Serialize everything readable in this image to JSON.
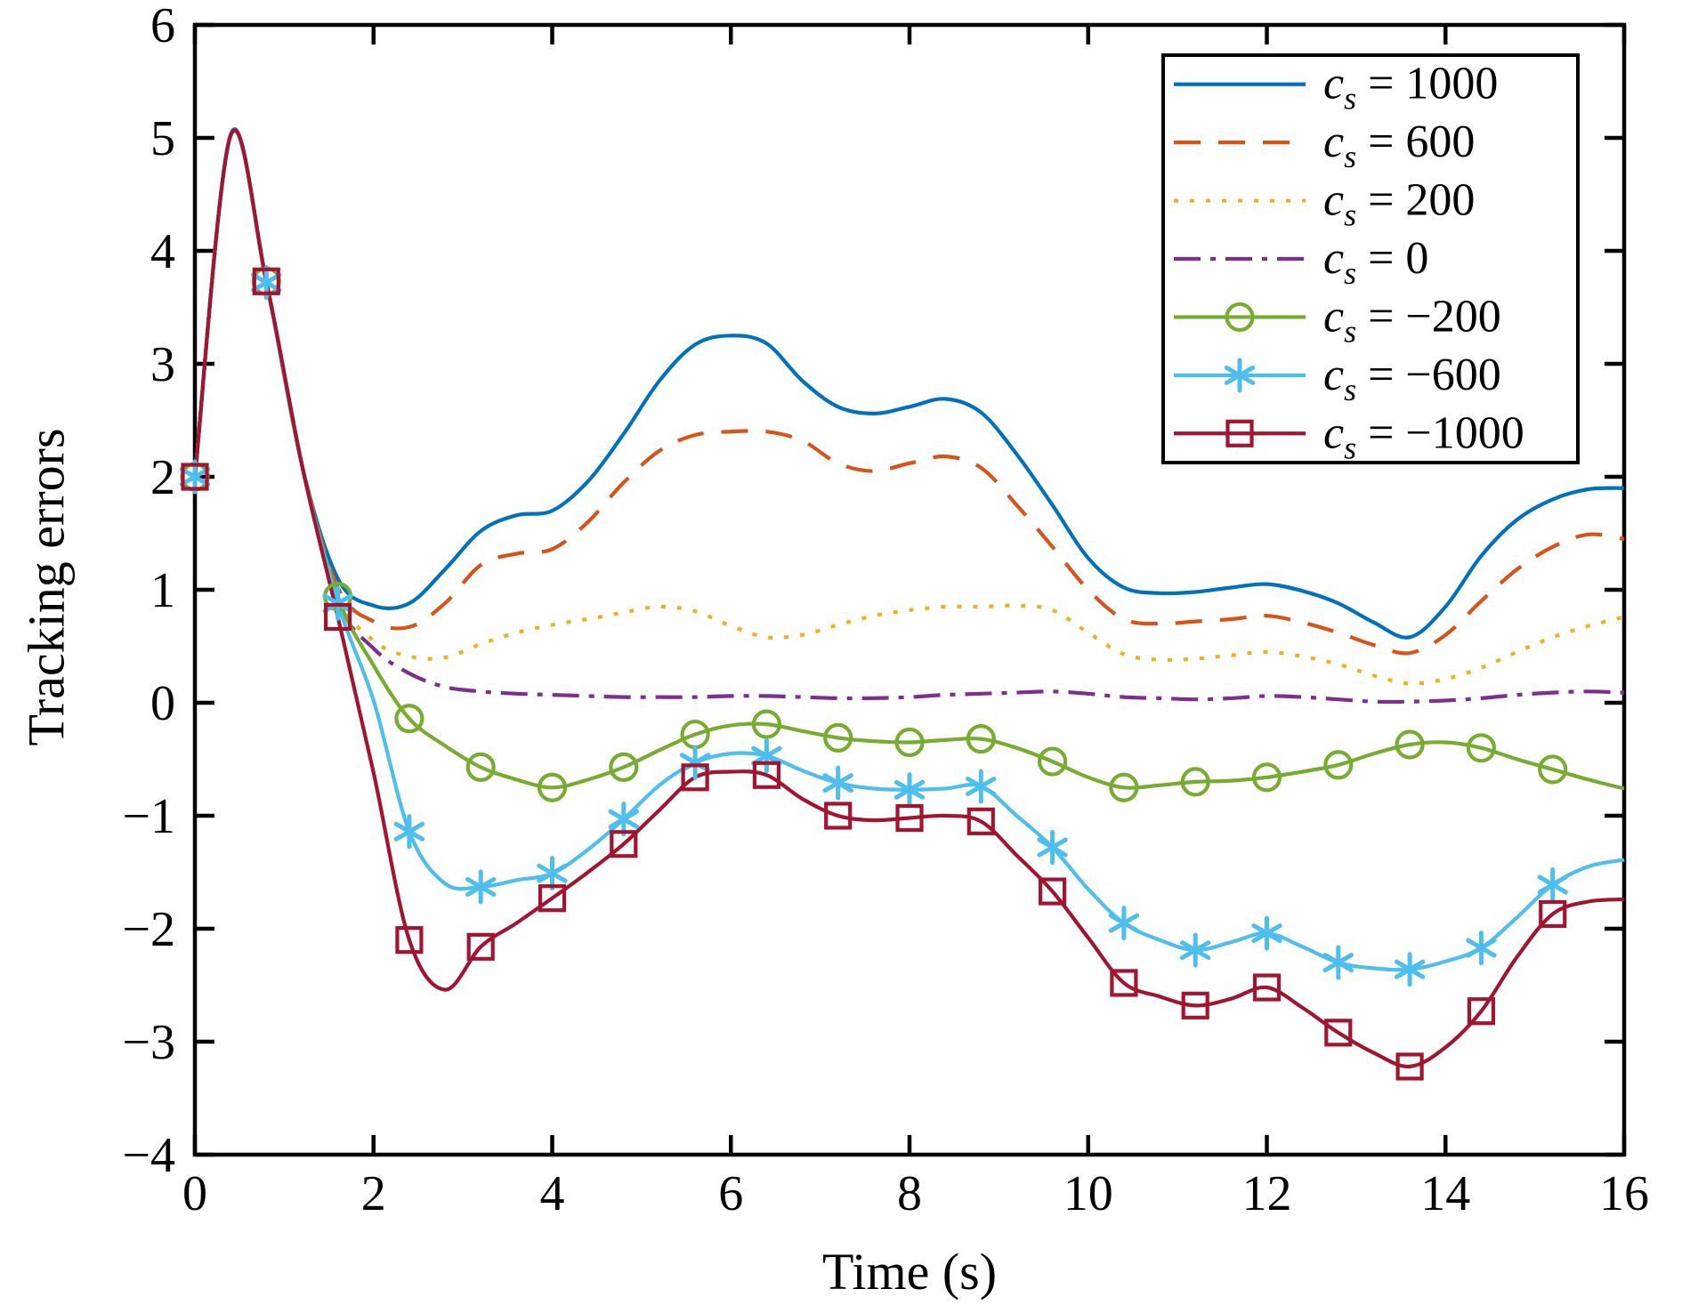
{
  "chart_data": {
    "type": "line",
    "title": "",
    "xlabel": "Time (s)",
    "ylabel": "Tracking errors",
    "xlim": [
      0,
      16
    ],
    "ylim": [
      -4,
      6
    ],
    "grid": false,
    "legend_position": "top-right",
    "x_tick_labels": [
      "0",
      "2",
      "4",
      "6",
      "8",
      "10",
      "12",
      "14",
      "16"
    ],
    "x_tick_values": [
      0,
      2,
      4,
      6,
      8,
      10,
      12,
      14,
      16
    ],
    "y_tick_labels": [
      "6",
      "5",
      "4",
      "3",
      "2",
      "1",
      "0",
      "−1",
      "−2",
      "−3",
      "−4"
    ],
    "y_tick_values": [
      6,
      5,
      4,
      3,
      2,
      1,
      0,
      -1,
      -2,
      -3,
      -4
    ],
    "t": [
      0,
      0.4,
      0.8,
      1.2,
      1.6,
      2,
      2.4,
      2.8,
      3.2,
      3.6,
      4,
      4.4,
      4.8,
      5.2,
      5.6,
      6,
      6.4,
      6.8,
      7.2,
      7.6,
      8,
      8.4,
      8.8,
      9.2,
      9.6,
      10,
      10.4,
      10.8,
      11.2,
      11.6,
      12,
      12.4,
      12.8,
      13.2,
      13.6,
      14,
      14.4,
      14.8,
      15.2,
      15.6,
      16
    ],
    "series": [
      {
        "id": "cs-1000",
        "legend_var": "c",
        "legend_sub": "s",
        "legend_value": "1000",
        "color": "#0072BD",
        "line_style": "solid",
        "marker": "none",
        "values": [
          2.0,
          5.03,
          3.72,
          2.1,
          1.1,
          0.86,
          0.88,
          1.18,
          1.52,
          1.66,
          1.7,
          1.96,
          2.38,
          2.85,
          3.17,
          3.25,
          3.18,
          2.85,
          2.62,
          2.56,
          2.62,
          2.69,
          2.57,
          2.2,
          1.75,
          1.28,
          1.02,
          0.97,
          0.98,
          1.02,
          1.05,
          0.99,
          0.88,
          0.71,
          0.58,
          0.85,
          1.3,
          1.62,
          1.8,
          1.89,
          1.9
        ]
      },
      {
        "id": "cs-600",
        "legend_var": "c",
        "legend_sub": "s",
        "legend_value": "600",
        "color": "#D95319",
        "line_style": "dashed",
        "marker": "none",
        "values": [
          2.0,
          5.02,
          3.72,
          2.1,
          1.02,
          0.72,
          0.67,
          0.88,
          1.22,
          1.32,
          1.36,
          1.6,
          1.95,
          2.23,
          2.37,
          2.4,
          2.4,
          2.32,
          2.12,
          2.05,
          2.12,
          2.18,
          2.08,
          1.75,
          1.38,
          1.0,
          0.74,
          0.7,
          0.72,
          0.74,
          0.77,
          0.71,
          0.62,
          0.51,
          0.44,
          0.6,
          0.9,
          1.18,
          1.38,
          1.49,
          1.45
        ]
      },
      {
        "id": "cs-200",
        "legend_var": "c",
        "legend_sub": "s",
        "legend_value": "200",
        "color": "#EDB120",
        "line_style": "dotted",
        "marker": "none",
        "values": [
          2.0,
          5.02,
          3.72,
          2.1,
          0.95,
          0.55,
          0.41,
          0.4,
          0.52,
          0.62,
          0.69,
          0.74,
          0.8,
          0.85,
          0.81,
          0.68,
          0.58,
          0.6,
          0.69,
          0.77,
          0.82,
          0.85,
          0.85,
          0.86,
          0.82,
          0.62,
          0.43,
          0.38,
          0.39,
          0.42,
          0.45,
          0.41,
          0.34,
          0.24,
          0.17,
          0.21,
          0.31,
          0.45,
          0.58,
          0.68,
          0.76
        ]
      },
      {
        "id": "cs-0",
        "legend_var": "c",
        "legend_sub": "s",
        "legend_value": "0",
        "color": "#7E2F8E",
        "line_style": "dashdot",
        "marker": "none",
        "values": [
          2.0,
          5.02,
          3.72,
          2.1,
          0.9,
          0.48,
          0.26,
          0.14,
          0.1,
          0.08,
          0.07,
          0.06,
          0.05,
          0.05,
          0.05,
          0.06,
          0.06,
          0.05,
          0.04,
          0.04,
          0.05,
          0.07,
          0.08,
          0.09,
          0.1,
          0.08,
          0.05,
          0.04,
          0.03,
          0.04,
          0.06,
          0.05,
          0.03,
          0.01,
          0.01,
          0.02,
          0.04,
          0.07,
          0.09,
          0.1,
          0.09
        ]
      },
      {
        "id": "cs-neg200",
        "legend_var": "c",
        "legend_sub": "s",
        "legend_value": "−200",
        "color": "#77AC30",
        "line_style": "solid",
        "marker": "circle",
        "values": [
          2.0,
          5.02,
          3.73,
          2.1,
          0.94,
          0.33,
          -0.14,
          -0.38,
          -0.57,
          -0.68,
          -0.75,
          -0.68,
          -0.57,
          -0.42,
          -0.28,
          -0.2,
          -0.19,
          -0.25,
          -0.31,
          -0.34,
          -0.35,
          -0.33,
          -0.32,
          -0.4,
          -0.52,
          -0.66,
          -0.75,
          -0.73,
          -0.7,
          -0.69,
          -0.66,
          -0.61,
          -0.55,
          -0.45,
          -0.37,
          -0.35,
          -0.4,
          -0.5,
          -0.59,
          -0.68,
          -0.76
        ]
      },
      {
        "id": "cs-neg600",
        "legend_var": "c",
        "legend_sub": "s",
        "legend_value": "−600",
        "color": "#4DBEEE",
        "line_style": "solid",
        "marker": "asterisk",
        "values": [
          2.0,
          5.02,
          3.72,
          2.1,
          0.88,
          0.02,
          -1.14,
          -1.6,
          -1.63,
          -1.57,
          -1.51,
          -1.3,
          -1.03,
          -0.73,
          -0.53,
          -0.45,
          -0.47,
          -0.6,
          -0.71,
          -0.76,
          -0.77,
          -0.76,
          -0.74,
          -1.0,
          -1.28,
          -1.65,
          -1.95,
          -2.1,
          -2.19,
          -2.12,
          -2.04,
          -2.16,
          -2.3,
          -2.35,
          -2.36,
          -2.29,
          -2.17,
          -1.9,
          -1.61,
          -1.45,
          -1.39
        ]
      },
      {
        "id": "cs-neg1000",
        "legend_var": "c",
        "legend_sub": "s",
        "legend_value": "−1000",
        "color": "#A2142F",
        "line_style": "solid",
        "marker": "square",
        "values": [
          2.0,
          5.02,
          3.73,
          2.1,
          0.76,
          -0.62,
          -2.1,
          -2.54,
          -2.16,
          -1.95,
          -1.73,
          -1.5,
          -1.25,
          -0.95,
          -0.66,
          -0.61,
          -0.64,
          -0.85,
          -1.0,
          -1.04,
          -1.02,
          -1.0,
          -1.05,
          -1.35,
          -1.67,
          -2.08,
          -2.48,
          -2.6,
          -2.68,
          -2.62,
          -2.52,
          -2.7,
          -2.92,
          -3.1,
          -3.22,
          -3.05,
          -2.73,
          -2.25,
          -1.87,
          -1.76,
          -1.74
        ]
      }
    ],
    "marker_every": 2,
    "axis_color": "#000000",
    "background_color": "#ffffff",
    "legend_equals": " = "
  }
}
